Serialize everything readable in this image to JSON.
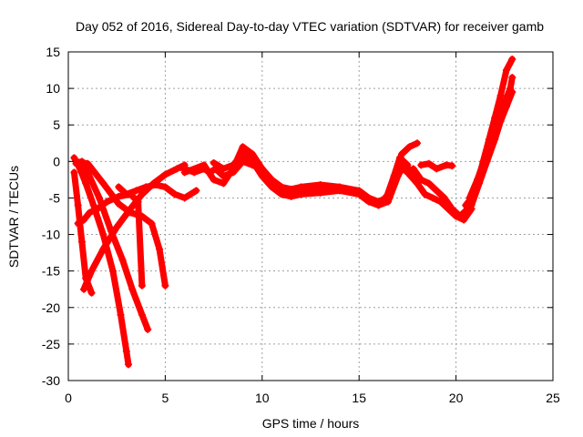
{
  "chart_data": {
    "type": "scatter",
    "title": "Day 052 of 2016, Sidereal Day-to-day VTEC variation (SDTVAR) for receiver gamb",
    "xlabel": "GPS time / hours",
    "ylabel": "SDTVAR / TECUs",
    "xlim": [
      0,
      25
    ],
    "ylim": [
      -30,
      15
    ],
    "x_ticks": [
      0,
      5,
      10,
      15,
      20,
      25
    ],
    "y_ticks": [
      -30,
      -25,
      -20,
      -15,
      -10,
      -5,
      0,
      5,
      10,
      15
    ],
    "x_tick_labels": [
      "0",
      "5",
      "10",
      "15",
      "20",
      "25"
    ],
    "y_tick_labels": [
      "-30",
      "-25",
      "-20",
      "-15",
      "-10",
      "-5",
      "0",
      "5",
      "10",
      "15"
    ],
    "grid": true,
    "marker": "plus",
    "color": "#ff0000",
    "series": [
      {
        "name": "trace-1",
        "x": [
          0.3,
          0.6,
          0.9,
          1.3,
          1.8,
          2.3,
          2.7,
          3.0,
          3.1
        ],
        "y": [
          0.5,
          -1.0,
          -3.0,
          -6.0,
          -10.0,
          -15.0,
          -21.0,
          -26.0,
          -27.8
        ]
      },
      {
        "name": "trace-2",
        "x": [
          0.4,
          0.7,
          1.0,
          1.6,
          2.2,
          2.8,
          3.3,
          3.8,
          4.1
        ],
        "y": [
          -0.3,
          0.0,
          -1.5,
          -5.0,
          -9.5,
          -13.5,
          -17.5,
          -21.0,
          -23.0
        ]
      },
      {
        "name": "trace-3",
        "x": [
          0.4,
          1.0,
          1.8,
          2.6,
          3.2,
          3.8,
          4.3,
          4.7,
          5.0
        ],
        "y": [
          0.0,
          -0.3,
          -3.0,
          -5.8,
          -7.0,
          -7.5,
          -8.5,
          -12.0,
          -17.0
        ]
      },
      {
        "name": "trace-4",
        "x": [
          0.3,
          0.5,
          0.7,
          0.9,
          1.2
        ],
        "y": [
          -1.5,
          -6.0,
          -11.0,
          -16.0,
          -18.0
        ]
      },
      {
        "name": "trace-5",
        "x": [
          0.5,
          0.8,
          1.1,
          1.5,
          2.0,
          2.6,
          3.2,
          3.6,
          3.8
        ],
        "y": [
          -8.5,
          -8.0,
          -7.0,
          -6.5,
          -5.5,
          -4.8,
          -4.5,
          -5.5,
          -17.0
        ]
      },
      {
        "name": "trace-6",
        "x": [
          0.8,
          1.2,
          1.8,
          2.5,
          3.2,
          3.8,
          4.4,
          5.0,
          5.6,
          6.0
        ],
        "y": [
          -17.5,
          -15.0,
          -12.0,
          -9.0,
          -6.5,
          -4.5,
          -3.0,
          -1.8,
          -1.0,
          -0.5
        ]
      },
      {
        "name": "trace-7",
        "x": [
          2.6,
          3.0,
          3.5,
          4.0,
          4.5,
          5.0,
          5.5,
          6.0,
          6.6
        ],
        "y": [
          -3.5,
          -4.5,
          -4.0,
          -3.5,
          -3.2,
          -3.5,
          -4.5,
          -5.0,
          -4.0
        ]
      },
      {
        "name": "trace-8",
        "x": [
          5.8,
          6.5,
          7.0,
          7.3,
          7.6,
          8.0,
          8.5,
          9.0,
          9.5,
          10.0,
          10.5,
          11.0,
          11.5,
          12.0,
          13.0,
          14.0,
          15.0,
          15.5,
          16.0,
          16.4,
          16.8,
          17.2,
          17.6,
          18.0
        ],
        "y": [
          -0.8,
          -1.5,
          -1.0,
          -1.5,
          -1.0,
          -2.0,
          -1.5,
          0.0,
          -0.5,
          -1.0,
          -2.5,
          -3.5,
          -3.8,
          -3.5,
          -3.2,
          -3.5,
          -4.0,
          -5.0,
          -5.5,
          -5.0,
          -2.0,
          1.0,
          2.0,
          2.5
        ]
      },
      {
        "name": "trace-9",
        "x": [
          6.0,
          7.0,
          7.5,
          8.0,
          8.5,
          9.0,
          9.5,
          10.0,
          10.5,
          11.0,
          11.5,
          12.0,
          13.0,
          14.0,
          15.0,
          15.5,
          16.0,
          16.5,
          17.0,
          17.3,
          17.8
        ],
        "y": [
          -1.5,
          -0.5,
          -2.5,
          -3.0,
          -1.0,
          2.0,
          1.0,
          -1.0,
          -3.0,
          -4.0,
          -4.5,
          -4.2,
          -4.0,
          -3.8,
          -4.2,
          -5.0,
          -6.0,
          -5.5,
          -2.0,
          -0.5,
          -1.5
        ]
      },
      {
        "name": "trace-10",
        "x": [
          7.5,
          8.0,
          8.5,
          9.0,
          9.5,
          10.0,
          10.5,
          11.0,
          11.5,
          12.0,
          13.0,
          14.0,
          15.0,
          15.5,
          16.0,
          16.5,
          16.8,
          17.1,
          17.5
        ],
        "y": [
          -0.2,
          -1.0,
          -0.5,
          1.0,
          0.0,
          -2.0,
          -3.5,
          -4.5,
          -4.8,
          -4.5,
          -4.3,
          -4.0,
          -4.5,
          -5.5,
          -6.0,
          -4.5,
          -2.0,
          0.5,
          -0.5
        ]
      },
      {
        "name": "trace-11",
        "x": [
          17.8,
          18.2,
          18.6,
          19.0,
          19.4,
          19.8,
          20.2,
          20.6,
          20.9
        ],
        "y": [
          -1.0,
          -2.5,
          -3.0,
          -4.0,
          -5.0,
          -6.5,
          -7.5,
          -6.5,
          -4.0
        ]
      },
      {
        "name": "trace-12",
        "x": [
          17.0,
          17.5,
          18.0,
          18.4,
          18.8,
          19.2,
          19.6,
          20.0,
          20.4,
          20.8
        ],
        "y": [
          -0.5,
          -1.5,
          -3.0,
          -4.5,
          -5.0,
          -5.5,
          -6.5,
          -7.5,
          -8.0,
          -6.5
        ]
      },
      {
        "name": "trace-13",
        "x": [
          18.2,
          18.6,
          19.0,
          19.5,
          19.8
        ],
        "y": [
          -0.5,
          -0.3,
          -1.0,
          -0.5,
          -0.6
        ]
      },
      {
        "name": "trace-14",
        "x": [
          20.5,
          20.8,
          21.1,
          21.4,
          21.7,
          22.0,
          22.3,
          22.6,
          22.9
        ],
        "y": [
          -6.0,
          -5.0,
          -3.0,
          0.0,
          3.0,
          6.0,
          9.0,
          12.5,
          14.0
        ]
      },
      {
        "name": "trace-15",
        "x": [
          20.7,
          21.1,
          21.5,
          21.9,
          22.2,
          22.5,
          22.8,
          22.9
        ],
        "y": [
          -5.0,
          -2.5,
          0.5,
          3.5,
          6.0,
          8.0,
          10.0,
          11.5
        ]
      },
      {
        "name": "trace-16",
        "x": [
          20.8,
          21.2,
          21.6,
          22.0,
          22.3,
          22.6,
          22.9
        ],
        "y": [
          -6.0,
          -3.0,
          0.0,
          3.0,
          5.5,
          7.5,
          9.5
        ]
      }
    ]
  }
}
